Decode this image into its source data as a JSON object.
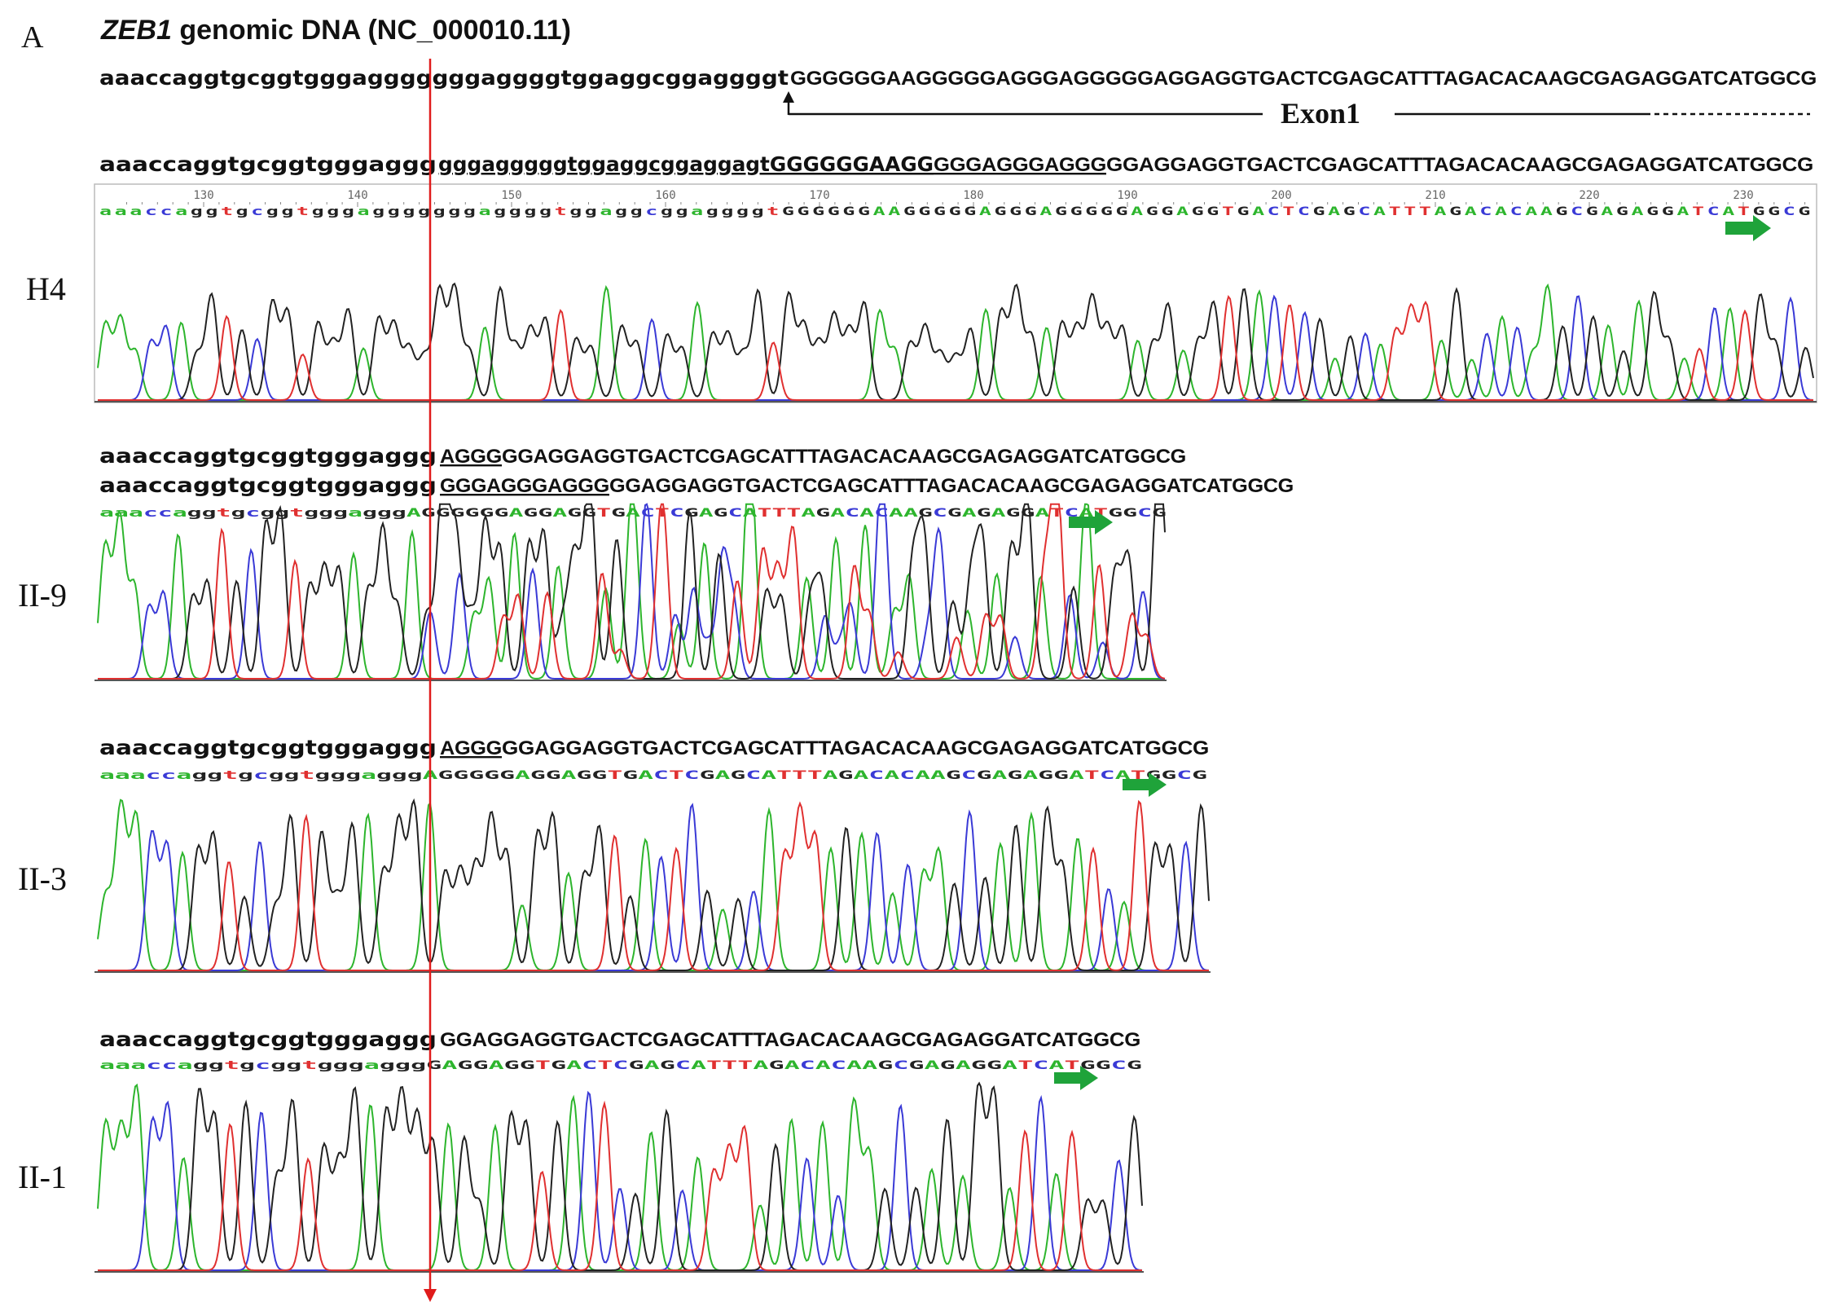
{
  "panel_letter": "A",
  "title": {
    "gene": "ZEB1",
    "rest": " genomic DNA (NC_000010.11)"
  },
  "exon_label": "Exon1",
  "colors": {
    "A": "#2db52d",
    "C": "#3a3ad6",
    "G": "#222222",
    "T": "#e03030",
    "green_text": "#1aa63c",
    "red_text": "#e01b1b",
    "blue_text": "#3a8ee0",
    "arrow_green": "#1fa33a",
    "cursor_red": "#e01b1b"
  },
  "reference": {
    "lower": "aaaccaggtgcggtgggagggggggaggggtggaggcggaggggt",
    "upper": "GGGGGGAAGGGGGAGGGAGGGGGAGGAGGTGACTCGAGCATTTAGACACAAGCGAGAGGATCATGGCG"
  },
  "aligned_h4": {
    "prefix": "aaaccaggtgcggtgggaggg",
    "green": "gggagggggtggaggcggaggagtGGGGGGAAGG",
    "red": "GGGAGGG",
    "blue": "AGGG",
    "rest": "GGAGGAGGTGACTCGAGCATTTAGACACAAGCGAGAGGATCATGGCG"
  },
  "ruler_numbers": [
    "130",
    "140",
    "150",
    "160",
    "170",
    "180",
    "190",
    "200",
    "210",
    "220",
    "230"
  ],
  "called_bases": {
    "h4": "aaaccaggtgcggtgggagggggggaggggtggaggcggaggggtGGGGGGAAGGGGGAGGGAGGGGGAGGAGGTGACTCGAGCATTTAGACACAAGCGAGAGGATCATGGCG",
    "ii9": "aaaccaggtgcggtgggagggAGGGGGGAGGAGGTGACTCGAGCATTTAGACACAAGCGAGAGGATCATGGCG",
    "ii3": "aaaccaggtgcggtgggagggAGGGGGAGGAGGTGACTCGAGCATTTAGACACAAGCGAGAGGATCATGGCG",
    "ii1": "aaaccaggtgcggtgggagggGAGGAGGTGACTCGAGCATTTAGACACAAGCGAGAGGATCATGGCG"
  },
  "samples": {
    "h4": "H4",
    "ii9": "II-9",
    "ii3": "II-3",
    "ii1": "II-1"
  },
  "ii9_seq1": {
    "prefix": "aaaccaggtgcggtgggaggg",
    "blue": "AGGG",
    "rest": "GGAGGAGGTGACTCGAGCATTTAGACACAAGCGAGAGGATCATGGCG"
  },
  "ii9_seq2": {
    "prefix": "aaaccaggtgcggtgggaggg",
    "red": "GGGAGGG",
    "blue": "AGGG",
    "rest": "GGAGGAGGTGACTCGAGCATTTAGACACAAGCGAGAGGATCATGGCG"
  },
  "ii3_seq": {
    "prefix": "aaaccaggtgcggtgggaggg",
    "blue": "AGGG",
    "rest": "GGAGGAGGTGACTCGAGCATTTAGACACAAGCGAGAGGATCATGGCG"
  },
  "ii1_seq": {
    "prefix": "aaaccaggtgcggtgggaggg",
    "rest": "GGAGGAGGTGACTCGAGCATTTAGACACAAGCGAGAGGATCATGGCG"
  }
}
